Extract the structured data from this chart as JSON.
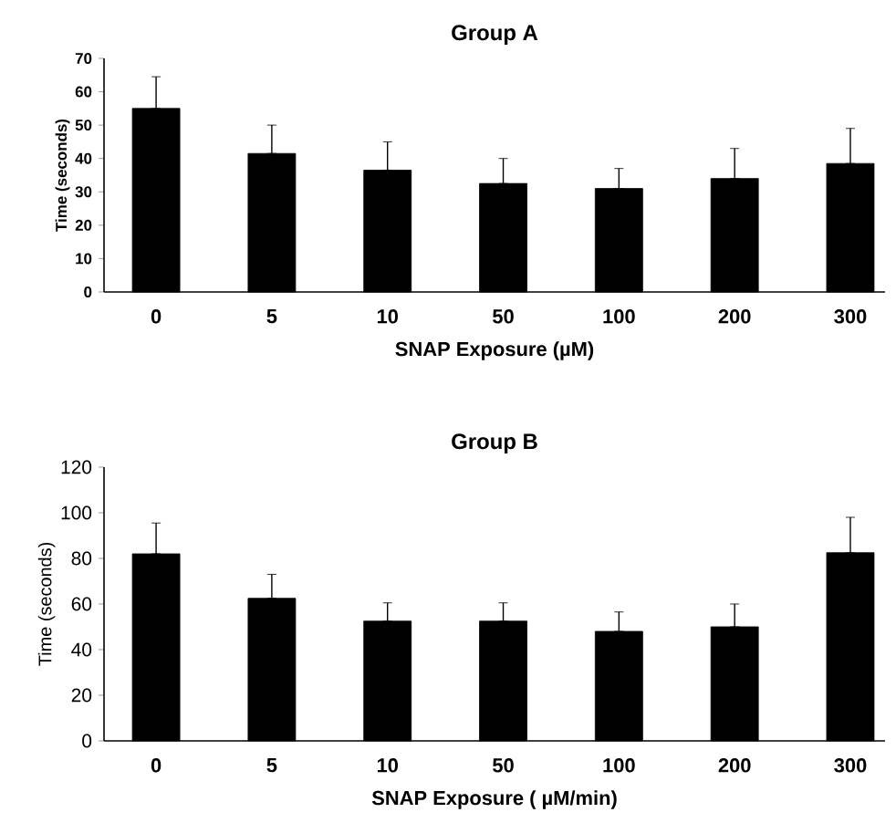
{
  "chart_data": [
    {
      "type": "bar",
      "title": "Group A",
      "xlabel": "SNAP Exposure (µM)",
      "ylabel": "Time (seconds)",
      "categories": [
        "0",
        "5",
        "10",
        "50",
        "100",
        "200",
        "300"
      ],
      "values": [
        55,
        41.5,
        36.5,
        32.5,
        31,
        34,
        38.5
      ],
      "errors": [
        [
          55,
          64.5
        ],
        [
          41.5,
          50
        ],
        [
          36.5,
          45
        ],
        [
          32.5,
          40
        ],
        [
          31,
          37
        ],
        [
          34,
          43
        ],
        [
          38.5,
          49
        ]
      ],
      "color": "#000000",
      "ylim": [
        0,
        70
      ],
      "yticks": [
        0,
        10,
        20,
        30,
        40,
        50,
        60,
        70
      ]
    },
    {
      "type": "bar",
      "title": "Group B",
      "xlabel": "SNAP Exposure ( µM/min)",
      "ylabel": "Time (seconds)",
      "categories": [
        "0",
        "5",
        "10",
        "50",
        "100",
        "200",
        "300"
      ],
      "values": [
        82,
        62.5,
        52.5,
        52.5,
        48,
        50,
        82.5
      ],
      "errors": [
        [
          82,
          95.5
        ],
        [
          62.5,
          73
        ],
        [
          52.5,
          60.5
        ],
        [
          52.5,
          60.5
        ],
        [
          48,
          56.5
        ],
        [
          50,
          60
        ],
        [
          82.5,
          98
        ]
      ],
      "color": "#000000",
      "ylim": [
        0,
        120
      ],
      "yticks": [
        0,
        20,
        40,
        60,
        80,
        100,
        120
      ]
    }
  ]
}
